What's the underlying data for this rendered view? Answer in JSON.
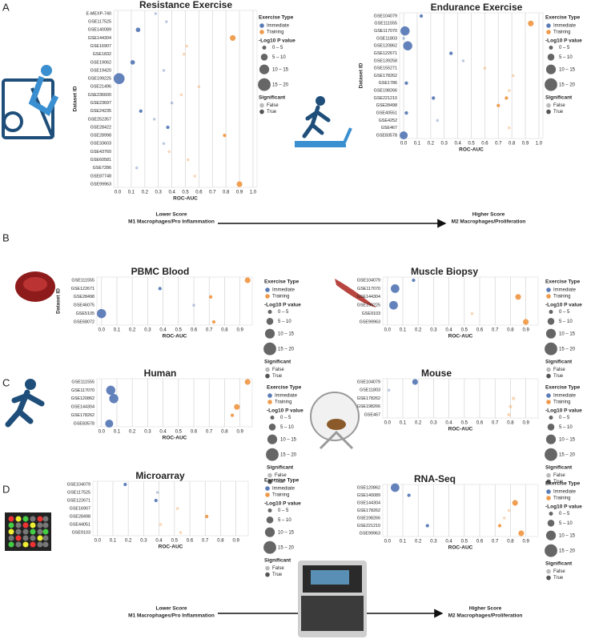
{
  "figure": {
    "panels": [
      "A",
      "B",
      "C",
      "D"
    ],
    "scale_notes": [
      {
        "left": [
          "Lower Score",
          "M1 Macrophages/Pro Inflammation"
        ],
        "right": [
          "Higher Score",
          "M2 Macrophages/Proliferation"
        ]
      },
      {
        "left": [
          "Lower Score",
          "M1 Macrophages/Pro Inflammation"
        ],
        "right": [
          "Higher Score",
          "M2 Macrophages/Proliferation"
        ]
      }
    ]
  },
  "chart_data": [
    {
      "type": "scatter",
      "title": "Resistance Exercise",
      "x_label": "ROC-AUC",
      "y_label": "Dataset ID",
      "categories": [
        "E-MEXP-740",
        "GSE117525",
        "GSE140089",
        "GSE144304",
        "GSE16907",
        "GSE1832",
        "GSE19062",
        "GSE19420",
        "GSE199225",
        "GSE21496",
        "GSE236600",
        "GSE23697",
        "GSE24235",
        "GSE252357",
        "GSE28422",
        "GSE28998",
        "GSE33603",
        "GSE43760",
        "GSE60581",
        "GSE7286",
        "GSE87748",
        "GSE99963"
      ],
      "xlim": [
        -0.03,
        1.03
      ],
      "xticks": [
        {
          "value": 0,
          "label": "0.0"
        },
        0.1,
        0.2,
        0.3,
        0.4,
        0.5,
        0.6,
        0.7,
        0.8,
        0.9,
        {
          "value": 1,
          "label": "1.0"
        }
      ],
      "grid": true,
      "legend_title": "Exercise Type",
      "series": [
        {
          "name": "Immediate",
          "color": "#5b7bb7",
          "y": [
            "E-MEXP-740",
            "GSE117525",
            "GSE140089",
            "GSE19062",
            "GSE19420",
            "GSE199225",
            "GSE23697",
            "GSE24235",
            "GSE252357",
            "GSE28422",
            "GSE33603",
            "GSE7286"
          ],
          "x": [
            0.28,
            0.36,
            0.15,
            0.11,
            0.34,
            0.01,
            0.4,
            0.17,
            0.27,
            0.37,
            0.34,
            0.14
          ],
          "size": [
            3,
            3,
            6,
            6,
            3,
            17,
            3,
            4,
            3,
            4,
            3,
            3
          ],
          "significant": [
            false,
            false,
            true,
            true,
            false,
            true,
            false,
            true,
            false,
            true,
            false,
            false
          ]
        },
        {
          "name": "Training",
          "color": "#ef9a4a",
          "y": [
            "GSE144304",
            "GSE16907",
            "GSE1832",
            "GSE21496",
            "GSE236600",
            "GSE28998",
            "GSE43760",
            "GSE60581",
            "GSE87748",
            "GSE99963"
          ],
          "x": [
            0.85,
            0.51,
            0.49,
            0.6,
            0.47,
            0.79,
            0.38,
            0.52,
            0.57,
            0.9
          ],
          "size": [
            8,
            3,
            3,
            3,
            3,
            4,
            3,
            3,
            3,
            8
          ],
          "significant": [
            true,
            false,
            false,
            false,
            false,
            true,
            false,
            false,
            false,
            true
          ]
        }
      ],
      "size_title": "-Log10 P value",
      "size_legend": [
        {
          "value": 5,
          "label": "0 – 5"
        },
        {
          "value": 10,
          "label": "5 – 10"
        },
        {
          "value": 15,
          "label": "10 – 15"
        },
        {
          "value": 20,
          "label": "15 – 20"
        }
      ],
      "significance_title": "Significant",
      "significance_labels": [
        "False",
        "True"
      ]
    },
    {
      "type": "scatter",
      "title": "Endurance Exercise",
      "x_label": "ROC-AUC",
      "y_label": "Dataset ID",
      "categories": [
        "GSE104079",
        "GSE111555",
        "GSE117070",
        "GSE11803",
        "GSE120862",
        "GSE122671",
        "GSE139258",
        "GSE155271",
        "GSE178262",
        "GSE1786",
        "GSE198266",
        "GSE221210",
        "GSE28498",
        "GSE40551",
        "GSE4252",
        "GSE467",
        "GSE83578"
      ],
      "xlim": [
        -0.03,
        1.03
      ],
      "xticks": [
        {
          "value": 0,
          "label": "0.0"
        },
        0.1,
        0.2,
        0.3,
        0.4,
        0.5,
        0.6,
        0.7,
        0.8,
        0.9,
        {
          "value": 1,
          "label": "1.0"
        }
      ],
      "grid": true,
      "legend_title": "Exercise Type",
      "series": [
        {
          "name": "Immediate",
          "color": "#5b7bb7",
          "y": [
            "GSE104079",
            "GSE117070",
            "GSE11803",
            "GSE120862",
            "GSE122671",
            "GSE139258",
            "GSE1786",
            "GSE221210",
            "GSE40551",
            "GSE4252",
            "GSE83578"
          ],
          "x": [
            0.13,
            0.01,
            0,
            0.03,
            0.35,
            0.44,
            0.02,
            0.22,
            0.02,
            0.25,
            0
          ],
          "size": [
            4,
            14,
            3,
            14,
            4,
            3,
            4,
            4,
            4,
            3,
            12
          ],
          "significant": [
            true,
            true,
            false,
            true,
            true,
            false,
            true,
            true,
            true,
            false,
            true
          ]
        },
        {
          "name": "Training",
          "color": "#ef9a4a",
          "y": [
            "GSE111555",
            "GSE155271",
            "GSE178262",
            "GSE198266",
            "GSE221210",
            "GSE28498",
            "GSE467"
          ],
          "x": [
            0.94,
            0.6,
            0.81,
            0.78,
            0.76,
            0.7,
            0.78
          ],
          "size": [
            8,
            3,
            3,
            3,
            4,
            4,
            3
          ],
          "significant": [
            true,
            false,
            false,
            false,
            true,
            true,
            false
          ]
        }
      ],
      "size_title": "-Log10 P value",
      "size_legend": [
        {
          "value": 5,
          "label": "0 – 5"
        },
        {
          "value": 10,
          "label": "5 – 10"
        },
        {
          "value": 15,
          "label": "10 – 15"
        },
        {
          "value": 20,
          "label": "15 – 20"
        }
      ],
      "significance_title": "Significant",
      "significance_labels": [
        "False",
        "True"
      ]
    },
    {
      "type": "scatter",
      "title": "PBMC Blood",
      "x_label": "ROC-AUC",
      "y_label": "Dataset ID",
      "categories": [
        "GSE111555",
        "GSE122671",
        "GSE28498",
        "GSE46075",
        "GSE5105",
        "GSE68072"
      ],
      "xlim": [
        -0.03,
        0.98
      ],
      "xticks": [
        {
          "value": 0,
          "label": "0.0"
        },
        0.1,
        0.2,
        0.3,
        0.4,
        0.5,
        0.6,
        0.7,
        0.8,
        0.9
      ],
      "grid": true,
      "legend_title": "Exercise Type",
      "series": [
        {
          "name": "Immediate",
          "color": "#5b7bb7",
          "y": [
            "GSE122671",
            "GSE46075",
            "GSE5105"
          ],
          "x": [
            0.38,
            0.6,
            0
          ],
          "size": [
            4,
            3,
            14
          ],
          "significant": [
            true,
            false,
            true
          ]
        },
        {
          "name": "Training",
          "color": "#ef9a4a",
          "y": [
            "GSE111555",
            "GSE28498",
            "GSE68072"
          ],
          "x": [
            0.95,
            0.71,
            0.73
          ],
          "size": [
            8,
            4,
            4
          ],
          "significant": [
            true,
            true,
            true
          ]
        }
      ],
      "size_title": "-Log10 P value",
      "size_legend": [
        {
          "value": 5,
          "label": "0 – 5"
        },
        {
          "value": 10,
          "label": "5 – 10"
        },
        {
          "value": 15,
          "label": "10 – 15"
        },
        {
          "value": 20,
          "label": "15 – 20"
        }
      ],
      "significance_title": "Significant",
      "significance_labels": [
        "False",
        "True"
      ]
    },
    {
      "type": "scatter",
      "title": "Muscle Biopsy",
      "x_label": "ROC-AUC",
      "categories": [
        "GSE104079",
        "GSE117070",
        "GSE144304",
        "GSE199225",
        "GSE9103",
        "GSE99963"
      ],
      "xlim": [
        -0.03,
        0.98
      ],
      "xticks": [
        {
          "value": 0,
          "label": "0.0"
        },
        0.1,
        0.2,
        0.3,
        0.4,
        0.5,
        0.6,
        0.7,
        0.8,
        0.9
      ],
      "grid": true,
      "legend_title": "Exercise Type",
      "series": [
        {
          "name": "Immediate",
          "color": "#5b7bb7",
          "y": [
            "GSE104079",
            "GSE117070",
            "GSE199225"
          ],
          "x": [
            0.17,
            0.05,
            0.04
          ],
          "size": [
            4,
            13,
            13
          ],
          "significant": [
            true,
            true,
            true
          ]
        },
        {
          "name": "Training",
          "color": "#ef9a4a",
          "y": [
            "GSE144304",
            "GSE9103",
            "GSE99963"
          ],
          "x": [
            0.85,
            0.55,
            0.9
          ],
          "size": [
            8,
            3,
            8
          ],
          "significant": [
            true,
            false,
            true
          ]
        }
      ],
      "size_title": "-Log10 P value",
      "size_legend": [
        {
          "value": 5,
          "label": "0 – 5"
        },
        {
          "value": 10,
          "label": "5 – 10"
        },
        {
          "value": 15,
          "label": "10 – 15"
        },
        {
          "value": 20,
          "label": "15 – 20"
        }
      ],
      "significance_title": "Significant",
      "significance_labels": [
        "False",
        "True"
      ]
    },
    {
      "type": "scatter",
      "title": "Human",
      "x_label": "ROC-AUC",
      "categories": [
        "GSE111555",
        "GSE117070",
        "GSE120862",
        "GSE144304",
        "GSE178262",
        "GSE83578"
      ],
      "xlim": [
        -0.03,
        0.98
      ],
      "xticks": [
        {
          "value": 0,
          "label": "0.0"
        },
        0.1,
        0.2,
        0.3,
        0.4,
        0.5,
        0.6,
        0.7,
        0.8,
        0.9
      ],
      "grid": true,
      "legend_title": "Exercise Type",
      "series": [
        {
          "name": "Immediate",
          "color": "#5b7bb7",
          "y": [
            "GSE117070",
            "GSE120862",
            "GSE83578"
          ],
          "x": [
            0.06,
            0.08,
            0.05
          ],
          "size": [
            14,
            14,
            12
          ],
          "significant": [
            true,
            true,
            true
          ]
        },
        {
          "name": "Training",
          "color": "#ef9a4a",
          "y": [
            "GSE111555",
            "GSE144304",
            "GSE178262"
          ],
          "x": [
            0.95,
            0.88,
            0.85
          ],
          "size": [
            8,
            8,
            4
          ],
          "significant": [
            true,
            true,
            true
          ]
        }
      ],
      "size_title": "-Log10 P value",
      "size_legend": [
        {
          "value": 5,
          "label": "0 – 5"
        },
        {
          "value": 10,
          "label": "5 – 10"
        },
        {
          "value": 15,
          "label": "10 – 15"
        },
        {
          "value": 20,
          "label": "15 – 20"
        }
      ],
      "significance_title": "Significant",
      "significance_labels": [
        "False",
        "True"
      ]
    },
    {
      "type": "scatter",
      "title": "Mouse",
      "x_label": "ROC-AUC",
      "categories": [
        "GSE104079",
        "GSE11803",
        "GSE178262",
        "GSE198266",
        "GSE467"
      ],
      "xlim": [
        -0.03,
        0.98
      ],
      "xticks": [
        {
          "value": 0,
          "label": "0.0"
        },
        0.1,
        0.2,
        0.3,
        0.4,
        0.5,
        0.6,
        0.7,
        0.8,
        0.9
      ],
      "grid": true,
      "legend_title": "Exercise Type",
      "series": [
        {
          "name": "Immediate",
          "color": "#5b7bb7",
          "y": [
            "GSE104079",
            "GSE11803"
          ],
          "x": [
            0.18,
            0.01
          ],
          "size": [
            8,
            3
          ],
          "significant": [
            true,
            false
          ]
        },
        {
          "name": "Training",
          "color": "#ef9a4a",
          "y": [
            "GSE178262",
            "GSE198266",
            "GSE467"
          ],
          "x": [
            0.82,
            0.8,
            0.79
          ],
          "size": [
            4,
            4,
            4
          ],
          "significant": [
            false,
            false,
            false
          ]
        }
      ],
      "size_title": "-Log10 P value",
      "size_legend": [
        {
          "value": 5,
          "label": "0 – 5"
        },
        {
          "value": 10,
          "label": "5 – 10"
        },
        {
          "value": 15,
          "label": "10 – 15"
        },
        {
          "value": 20,
          "label": "15 – 20"
        }
      ],
      "significance_title": "Significant",
      "significance_labels": [
        "False",
        "True"
      ]
    },
    {
      "type": "scatter",
      "title": "Microarray",
      "x_label": "ROC-AUC",
      "categories": [
        "GSE104079",
        "GSE117525",
        "GSE122671",
        "GSE16907",
        "GSE28498",
        "GSE44051",
        "GSE9103"
      ],
      "xlim": [
        -0.03,
        0.98
      ],
      "xticks": [
        {
          "value": 0,
          "label": "0.0"
        },
        0.1,
        0.2,
        0.3,
        0.4,
        0.5,
        0.6,
        0.7,
        0.8,
        0.9
      ],
      "grid": true,
      "legend_title": "Exercise Type",
      "series": [
        {
          "name": "Immediate",
          "color": "#5b7bb7",
          "y": [
            "GSE104079",
            "GSE117525",
            "GSE122671"
          ],
          "x": [
            0.18,
            0.39,
            0.38
          ],
          "size": [
            4,
            3,
            4
          ],
          "significant": [
            true,
            false,
            true
          ]
        },
        {
          "name": "Training",
          "color": "#ef9a4a",
          "y": [
            "GSE16907",
            "GSE28498",
            "GSE44051",
            "GSE9103"
          ],
          "x": [
            0.52,
            0.71,
            0.41,
            0.54
          ],
          "size": [
            3,
            4,
            3,
            3
          ],
          "significant": [
            false,
            true,
            false,
            false
          ]
        }
      ],
      "size_title": "-Log10 P value",
      "size_legend": [
        {
          "value": 5,
          "label": "0 – 5"
        },
        {
          "value": 10,
          "label": "5 – 10"
        },
        {
          "value": 15,
          "label": "10 – 15"
        },
        {
          "value": 20,
          "label": "15 – 20"
        }
      ],
      "significance_title": "Significant",
      "significance_labels": [
        "False",
        "True"
      ]
    },
    {
      "type": "scatter",
      "title": "RNA-Seq",
      "x_label": "ROC-AUC",
      "categories": [
        "GSE120862",
        "GSE140089",
        "GSE144304",
        "GSE178262",
        "GSE198266",
        "GSE221210",
        "GSE99963"
      ],
      "xlim": [
        -0.03,
        0.98
      ],
      "xticks": [
        {
          "value": 0,
          "label": "0.0"
        },
        0.1,
        0.2,
        0.3,
        0.4,
        0.5,
        0.6,
        0.7,
        0.8,
        0.9
      ],
      "grid": true,
      "legend_title": "Exercise Type",
      "series": [
        {
          "name": "Immediate",
          "color": "#5b7bb7",
          "y": [
            "GSE120862",
            "GSE140089",
            "GSE221210"
          ],
          "x": [
            0.05,
            0.14,
            0.26
          ],
          "size": [
            13,
            4,
            4
          ],
          "significant": [
            true,
            true,
            true
          ]
        },
        {
          "name": "Training",
          "color": "#ef9a4a",
          "y": [
            "GSE144304",
            "GSE178262",
            "GSE198266",
            "GSE99963",
            "GSE221210"
          ],
          "x": [
            0.83,
            0.79,
            0.76,
            0.87,
            0.73
          ],
          "size": [
            8,
            3,
            3,
            8,
            4
          ],
          "significant": [
            true,
            false,
            false,
            true,
            true
          ]
        }
      ],
      "size_title": "-Log10 P value",
      "size_legend": [
        {
          "value": 5,
          "label": "0 – 5"
        },
        {
          "value": 10,
          "label": "5 – 10"
        },
        {
          "value": 15,
          "label": "10 – 15"
        },
        {
          "value": 20,
          "label": "15 – 20"
        }
      ],
      "significance_title": "Significant",
      "significance_labels": [
        "False",
        "True"
      ]
    }
  ]
}
